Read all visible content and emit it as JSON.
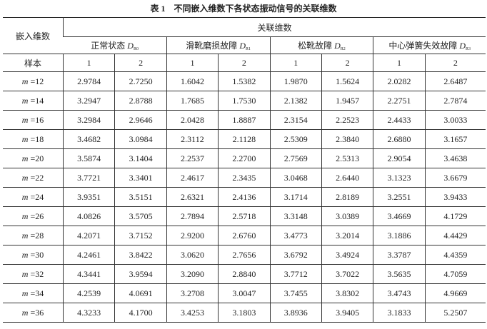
{
  "title": {
    "number": "表 1",
    "text": "不同嵌入维数下各状态振动信号的关联维数"
  },
  "header": {
    "row_label": "嵌入维数",
    "group_label": "关联维数",
    "states": [
      {
        "name": "正常状态",
        "symbol": "D",
        "sub": "R0"
      },
      {
        "name": "滑靴磨损故障",
        "symbol": "D",
        "sub": "R1"
      },
      {
        "name": "松靴故障",
        "symbol": "D",
        "sub": "R2"
      },
      {
        "name": "中心弹簧失效故障",
        "symbol": "D",
        "sub": "R3"
      }
    ],
    "sample_label": "样本",
    "samples": [
      "1",
      "2",
      "1",
      "2",
      "1",
      "2",
      "1",
      "2"
    ]
  },
  "rows": [
    {
      "m": "m =12",
      "values": [
        "2.9784",
        "2.7250",
        "1.6042",
        "1.5382",
        "1.9870",
        "1.5624",
        "2.0282",
        "2.6487"
      ]
    },
    {
      "m": "m =14",
      "values": [
        "3.2947",
        "2.8788",
        "1.7685",
        "1.7530",
        "2.1382",
        "1.9457",
        "2.2751",
        "2.7874"
      ]
    },
    {
      "m": "m =16",
      "values": [
        "3.2984",
        "2.9646",
        "2.0428",
        "1.8887",
        "2.3154",
        "2.2523",
        "2.4433",
        "3.0033"
      ]
    },
    {
      "m": "m =18",
      "values": [
        "3.4682",
        "3.0984",
        "2.3112",
        "2.1128",
        "2.5309",
        "2.3840",
        "2.6880",
        "3.1657"
      ]
    },
    {
      "m": "m =20",
      "values": [
        "3.5874",
        "3.1404",
        "2.2537",
        "2.2700",
        "2.7569",
        "2.5313",
        "2.9054",
        "3.4638"
      ]
    },
    {
      "m": "m =22",
      "values": [
        "3.7721",
        "3.3401",
        "2.4617",
        "2.3435",
        "3.0468",
        "2.6440",
        "3.1323",
        "3.6679"
      ]
    },
    {
      "m": "m =24",
      "values": [
        "3.9351",
        "3.5151",
        "2.6321",
        "2.4136",
        "3.1714",
        "2.8189",
        "3.2551",
        "3.9433"
      ]
    },
    {
      "m": "m =26",
      "values": [
        "4.0826",
        "3.5705",
        "2.7894",
        "2.5718",
        "3.3148",
        "3.0389",
        "3.4669",
        "4.1729"
      ]
    },
    {
      "m": "m =28",
      "values": [
        "4.2071",
        "3.7152",
        "2.9200",
        "2.6760",
        "3.4773",
        "3.2014",
        "3.1886",
        "4.4429"
      ]
    },
    {
      "m": "m =30",
      "values": [
        "4.2461",
        "3.8422",
        "3.0620",
        "2.7656",
        "3.6792",
        "3.4924",
        "3.3787",
        "4.4359"
      ]
    },
    {
      "m": "m =32",
      "values": [
        "4.3441",
        "3.9594",
        "3.2090",
        "2.8840",
        "3.7712",
        "3.7022",
        "3.5635",
        "4.7059"
      ]
    },
    {
      "m": "m =34",
      "values": [
        "4.2539",
        "4.0691",
        "3.2708",
        "3.0047",
        "3.7455",
        "3.8302",
        "3.4743",
        "4.9669"
      ]
    },
    {
      "m": "m =36",
      "values": [
        "4.3233",
        "4.1700",
        "3.4253",
        "3.1803",
        "3.8936",
        "3.9405",
        "3.1833",
        "5.2507"
      ]
    }
  ]
}
